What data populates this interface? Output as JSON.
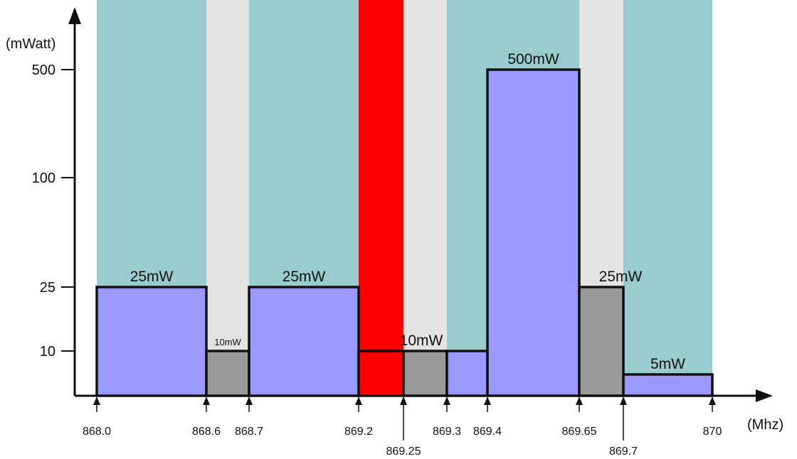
{
  "chart_data": {
    "type": "bar",
    "ylabel": "(mWatt)",
    "xlabel": "(Mhz)",
    "y_ticks": [
      "500",
      "100",
      "25",
      "10"
    ],
    "x_ticks": [
      "868.0",
      "868.6",
      "868.7",
      "869.2",
      "869.25",
      "869.3",
      "869.4",
      "869.65",
      "869.7",
      "870"
    ],
    "background_bands": [
      {
        "from": 868.0,
        "to": 868.6,
        "color": "#99cccc"
      },
      {
        "from": 868.6,
        "to": 868.7,
        "color": "#e3e3e3"
      },
      {
        "from": 868.7,
        "to": 869.2,
        "color": "#99cccc"
      },
      {
        "from": 869.2,
        "to": 869.25,
        "color": "#ff0000"
      },
      {
        "from": 869.25,
        "to": 869.3,
        "color": "#e3e3e3"
      },
      {
        "from": 869.3,
        "to": 869.65,
        "color": "#99cccc"
      },
      {
        "from": 869.65,
        "to": 869.7,
        "color": "#e3e3e3"
      },
      {
        "from": 869.7,
        "to": 870.0,
        "color": "#99cccc"
      }
    ],
    "bars": [
      {
        "from": 868.0,
        "to": 868.6,
        "value": 25,
        "label": "25mW",
        "color": "#9999ff"
      },
      {
        "from": 868.6,
        "to": 868.7,
        "value": 10,
        "label": "10mW",
        "color": "#999999"
      },
      {
        "from": 868.7,
        "to": 869.2,
        "value": 25,
        "label": "25mW",
        "color": "#9999ff"
      },
      {
        "from": 869.2,
        "to": 869.25,
        "value": 10,
        "label": "",
        "color": "#ff0000"
      },
      {
        "from": 869.25,
        "to": 869.3,
        "value": 10,
        "label": "10mW",
        "color": "#999999"
      },
      {
        "from": 869.3,
        "to": 869.4,
        "value": 10,
        "label": "",
        "color": "#9999ff"
      },
      {
        "from": 869.4,
        "to": 869.65,
        "value": 500,
        "label": "500mW",
        "color": "#9999ff"
      },
      {
        "from": 869.65,
        "to": 869.7,
        "value": 25,
        "label": "25mW",
        "color": "#999999"
      },
      {
        "from": 869.7,
        "to": 870.0,
        "value": 5,
        "label": "5mW",
        "color": "#9999ff"
      }
    ]
  }
}
